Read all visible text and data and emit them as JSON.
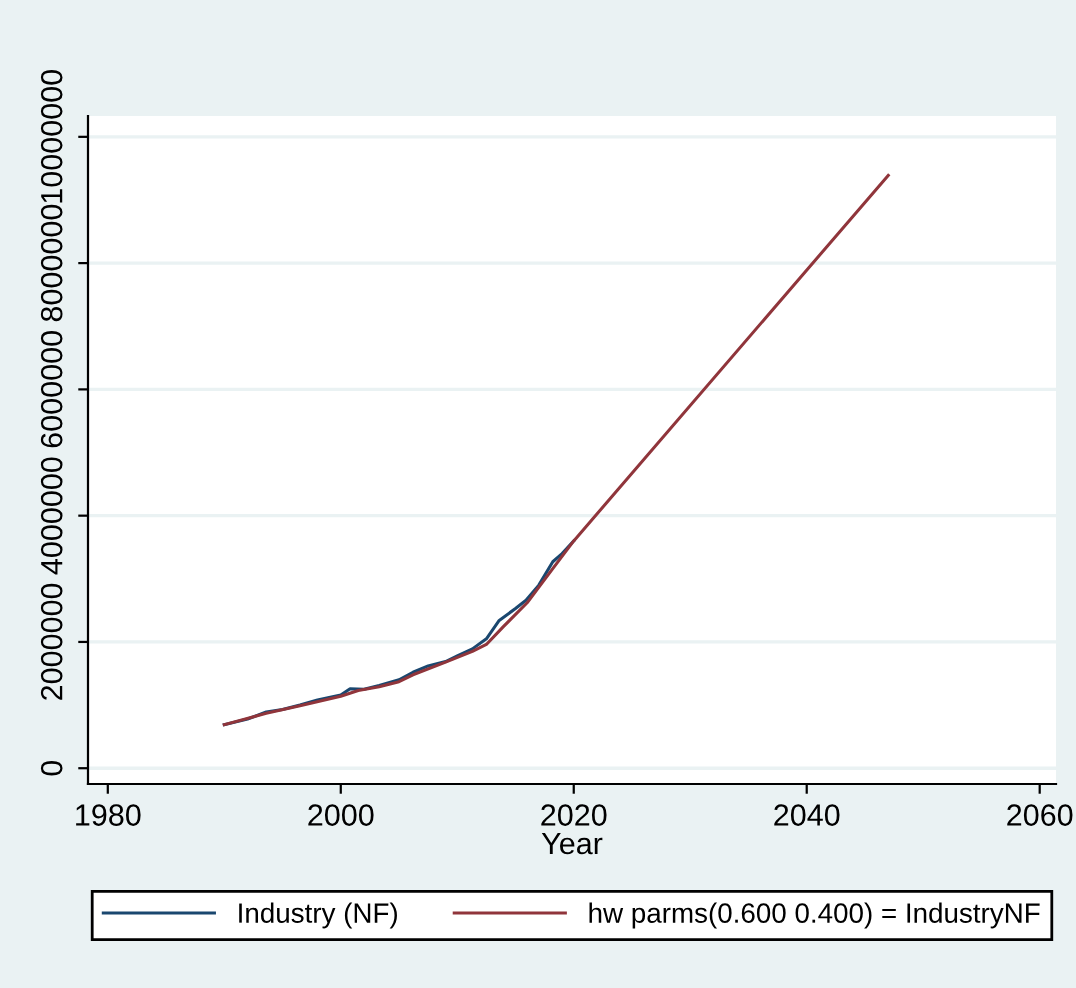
{
  "chart_data": {
    "type": "line",
    "xlabel": "Year",
    "xlim": [
      1978.3,
      2061.4
    ],
    "ylim": [
      -250000,
      10330000
    ],
    "xticks": [
      1980,
      2000,
      2020,
      2040,
      2060
    ],
    "yticks": [
      0,
      2000000,
      4000000,
      6000000,
      8000000,
      10000000
    ],
    "grid": "y",
    "legend": "bottom",
    "series": [
      {
        "name": "Industry (NF)",
        "color": "#1a476f",
        "x": [
          1990,
          1992,
          1993.6,
          1995,
          1996.5,
          1998,
          2000,
          2000.8,
          2002,
          2003.3,
          2005,
          2006.2,
          2007.5,
          2009,
          2010,
          2011.3,
          2012.5,
          2013.6,
          2015,
          2015.9,
          2017,
          2018.2,
          2019,
          2020
        ],
        "values": [
          690000,
          780000,
          890000,
          930000,
          1000000,
          1080000,
          1160000,
          1260000,
          1250000,
          1310000,
          1400000,
          1520000,
          1620000,
          1690000,
          1780000,
          1890000,
          2050000,
          2340000,
          2530000,
          2660000,
          2900000,
          3270000,
          3400000,
          3600000
        ]
      },
      {
        "name": "hw parms(0.600 0.400) = IndustryNF",
        "color": "#90353b",
        "x": [
          1990,
          1993.6,
          1996.5,
          2000,
          2001.5,
          2003.3,
          2005,
          2006.2,
          2009,
          2011.3,
          2012.5,
          2014,
          2016,
          2018.2,
          2020,
          2047
        ],
        "values": [
          690000,
          870000,
          990000,
          1140000,
          1230000,
          1290000,
          1370000,
          1480000,
          1680000,
          1850000,
          1960000,
          2250000,
          2620000,
          3160000,
          3600000,
          9390000
        ]
      }
    ]
  }
}
